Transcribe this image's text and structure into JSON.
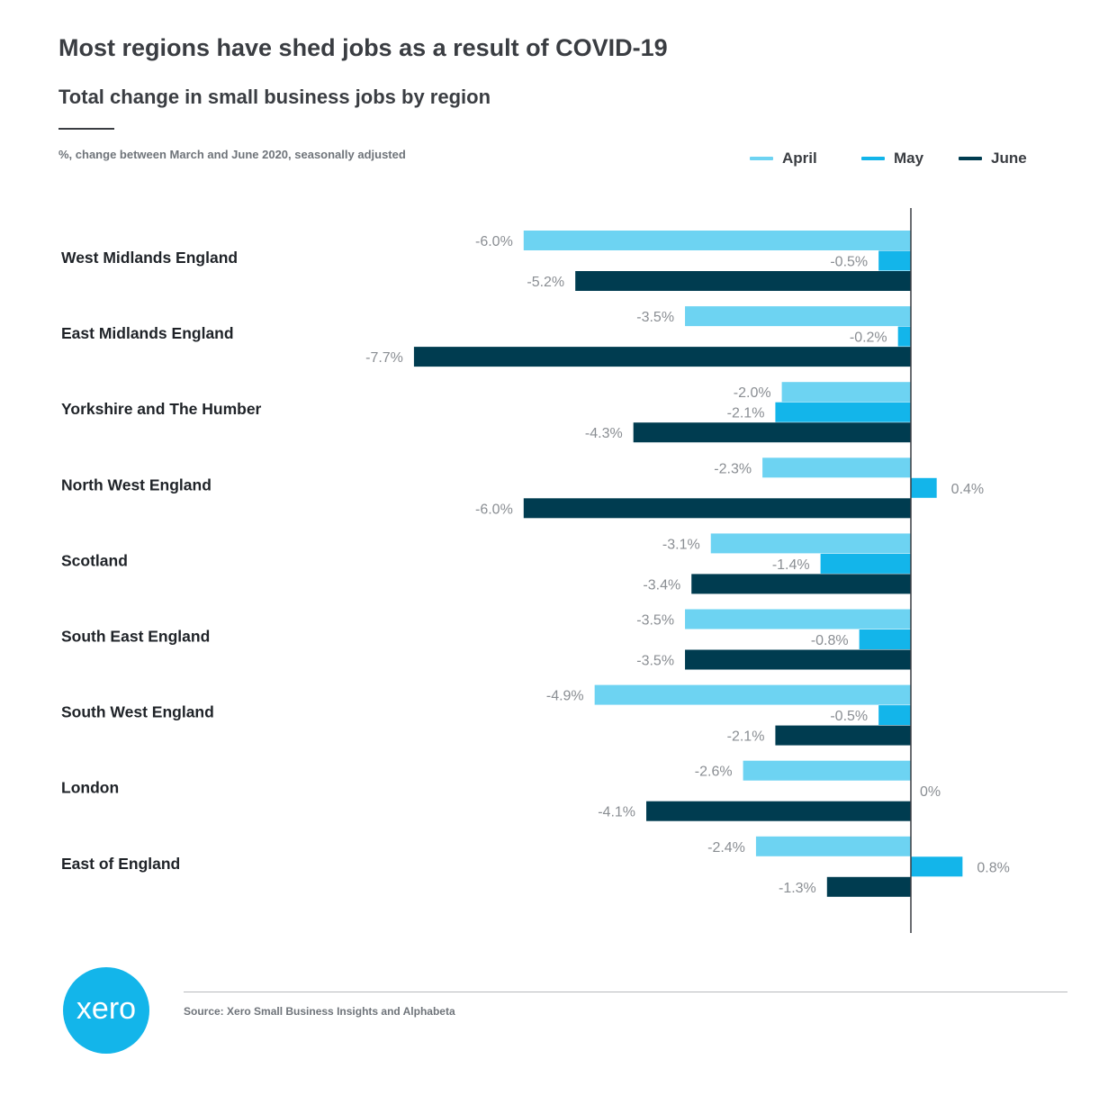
{
  "header": {
    "title": "Most regions have shed jobs as a result of COVID-19",
    "subtitle": "Total change in small business jobs by region",
    "note": "%, change between March and June 2020, seasonally adjusted"
  },
  "legend": [
    {
      "label": "April",
      "color": "#6dd3f2"
    },
    {
      "label": "May",
      "color": "#13b5ea"
    },
    {
      "label": "June",
      "color": "#003c50"
    }
  ],
  "chart_data": {
    "type": "bar",
    "orientation": "horizontal",
    "unit": "%",
    "categories": [
      "West Midlands England",
      "East Midlands England",
      "Yorkshire and The Humber",
      "North West England",
      "Scotland",
      "South East England",
      "South West England",
      "London",
      "East of England"
    ],
    "series": [
      {
        "name": "April",
        "color": "#6dd3f2",
        "values": [
          -6.0,
          -3.5,
          -2.0,
          -2.3,
          -3.1,
          -3.5,
          -4.9,
          -2.6,
          -2.4
        ],
        "labels": [
          "-6.0%",
          "-3.5%",
          "-2.0%",
          "-2.3%",
          "-3.1%",
          "-3.5%",
          "-4.9%",
          "-2.6%",
          "-2.4%"
        ]
      },
      {
        "name": "May",
        "color": "#13b5ea",
        "values": [
          -0.5,
          -0.2,
          -2.1,
          0.4,
          -1.4,
          -0.8,
          -0.5,
          0,
          0.8
        ],
        "labels": [
          "-0.5%",
          "-0.2%",
          "-2.1%",
          "0.4%",
          "-1.4%",
          "-0.8%",
          "-0.5%",
          "0%",
          "0.8%"
        ]
      },
      {
        "name": "June",
        "color": "#003c50",
        "values": [
          -5.2,
          -7.7,
          -4.3,
          -6.0,
          -3.4,
          -3.5,
          -2.1,
          -4.1,
          -1.3
        ],
        "labels": [
          "-5.2%",
          "-7.7%",
          "-4.3%",
          "-6.0%",
          "-3.4%",
          "-3.5%",
          "-2.1%",
          "-4.1%",
          "-1.3%"
        ]
      }
    ],
    "legend_position": "top-right",
    "grid": false
  },
  "footer": {
    "logo_text": "xero",
    "source": "Source: Xero Small Business Insights and Alphabeta"
  }
}
